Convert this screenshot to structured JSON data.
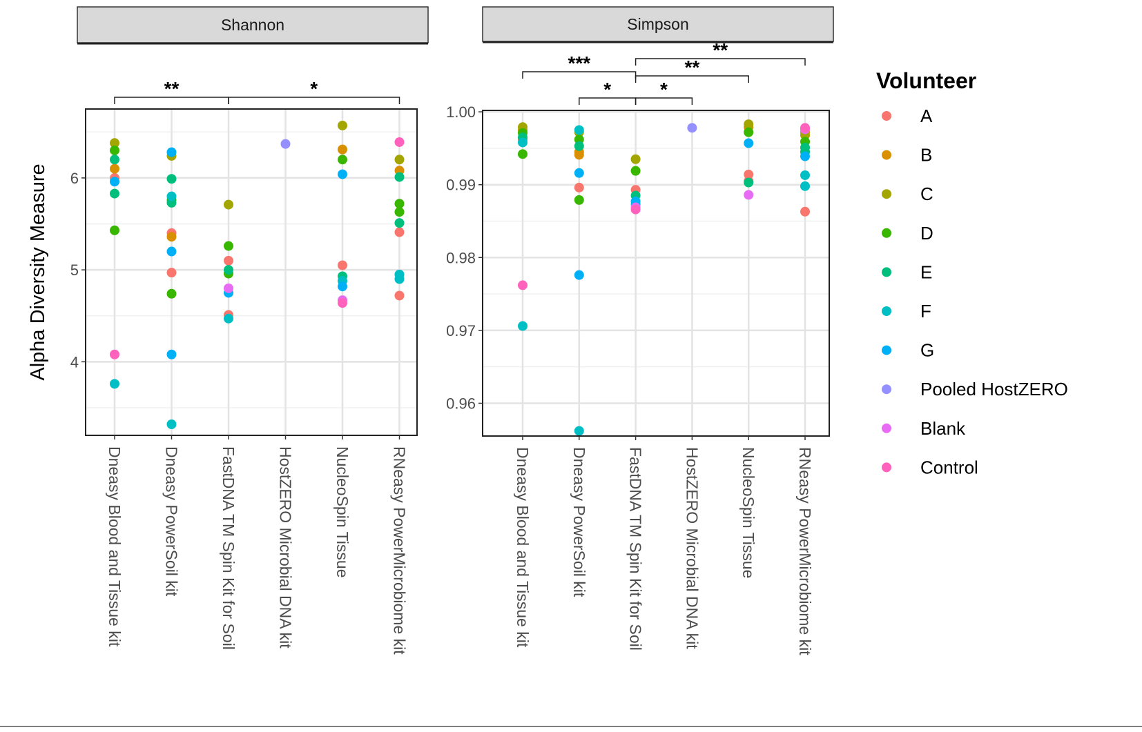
{
  "chart_data": [
    {
      "type": "scatter",
      "title": "Shannon",
      "xlabel": "",
      "ylabel": "Alpha Diversity Measure",
      "ylim": [
        3.2,
        6.75
      ],
      "yticks": [
        4,
        5,
        6
      ],
      "ytick_labels": [
        "4",
        "5",
        "6"
      ],
      "grid": true,
      "categories": [
        "Dneasy Blood and Tissue kit",
        "Dneasy PowerSoil kit",
        "FastDNA TM Spin Kit for Soil",
        "HostZERO Microbial DNA kit",
        "NucleoSpin Tissue",
        "RNeasy PowerMicrobiome kit"
      ],
      "series": [
        {
          "name": "A",
          "points": [
            [
              "Dneasy Blood and Tissue kit",
              6.0
            ],
            [
              "Dneasy PowerSoil kit",
              5.4
            ],
            [
              "Dneasy PowerSoil kit",
              4.97
            ],
            [
              "FastDNA TM Spin Kit for Soil",
              5.1
            ],
            [
              "FastDNA TM Spin Kit for Soil",
              4.51
            ],
            [
              "NucleoSpin Tissue",
              5.05
            ],
            [
              "RNeasy PowerMicrobiome kit",
              5.41
            ],
            [
              "RNeasy PowerMicrobiome kit",
              4.72
            ]
          ]
        },
        {
          "name": "B",
          "points": [
            [
              "Dneasy Blood and Tissue kit",
              6.1
            ],
            [
              "Dneasy PowerSoil kit",
              5.36
            ],
            [
              "NucleoSpin Tissue",
              6.31
            ],
            [
              "RNeasy PowerMicrobiome kit",
              6.08
            ]
          ]
        },
        {
          "name": "C",
          "points": [
            [
              "Dneasy Blood and Tissue kit",
              6.38
            ],
            [
              "Dneasy PowerSoil kit",
              6.24
            ],
            [
              "FastDNA TM Spin Kit for Soil",
              5.71
            ],
            [
              "NucleoSpin Tissue",
              6.57
            ],
            [
              "RNeasy PowerMicrobiome kit",
              6.2
            ]
          ]
        },
        {
          "name": "D",
          "points": [
            [
              "Dneasy Blood and Tissue kit",
              6.3
            ],
            [
              "Dneasy Blood and Tissue kit",
              5.43
            ],
            [
              "Dneasy PowerSoil kit",
              5.76
            ],
            [
              "Dneasy PowerSoil kit",
              4.74
            ],
            [
              "FastDNA TM Spin Kit for Soil",
              5.26
            ],
            [
              "FastDNA TM Spin Kit for Soil",
              4.96
            ],
            [
              "NucleoSpin Tissue",
              6.2
            ],
            [
              "RNeasy PowerMicrobiome kit",
              5.72
            ],
            [
              "RNeasy PowerMicrobiome kit",
              5.63
            ]
          ]
        },
        {
          "name": "E",
          "points": [
            [
              "Dneasy Blood and Tissue kit",
              6.2
            ],
            [
              "Dneasy Blood and Tissue kit",
              5.83
            ],
            [
              "Dneasy PowerSoil kit",
              5.99
            ],
            [
              "Dneasy PowerSoil kit",
              5.73
            ],
            [
              "FastDNA TM Spin Kit for Soil",
              5.0
            ],
            [
              "NucleoSpin Tissue",
              4.93
            ],
            [
              "RNeasy PowerMicrobiome kit",
              6.01
            ],
            [
              "RNeasy PowerMicrobiome kit",
              5.51
            ]
          ]
        },
        {
          "name": "F",
          "points": [
            [
              "Dneasy Blood and Tissue kit",
              3.76
            ],
            [
              "Dneasy PowerSoil kit",
              5.8
            ],
            [
              "Dneasy PowerSoil kit",
              3.32
            ],
            [
              "FastDNA TM Spin Kit for Soil",
              4.47
            ],
            [
              "NucleoSpin Tissue",
              4.88
            ],
            [
              "RNeasy PowerMicrobiome kit",
              4.95
            ],
            [
              "RNeasy PowerMicrobiome kit",
              4.9
            ]
          ]
        },
        {
          "name": "G",
          "points": [
            [
              "Dneasy Blood and Tissue kit",
              5.96
            ],
            [
              "Dneasy PowerSoil kit",
              6.28
            ],
            [
              "Dneasy PowerSoil kit",
              5.2
            ],
            [
              "Dneasy PowerSoil kit",
              4.08
            ],
            [
              "FastDNA TM Spin Kit for Soil",
              4.75
            ],
            [
              "NucleoSpin Tissue",
              6.04
            ],
            [
              "NucleoSpin Tissue",
              4.82
            ]
          ]
        },
        {
          "name": "Pooled HostZERO",
          "points": [
            [
              "HostZERO Microbial DNA kit",
              6.37
            ]
          ]
        },
        {
          "name": "Blank",
          "points": [
            [
              "FastDNA TM Spin Kit for Soil",
              4.8
            ],
            [
              "NucleoSpin Tissue",
              4.67
            ]
          ]
        },
        {
          "name": "Control",
          "points": [
            [
              "Dneasy Blood and Tissue kit",
              4.08
            ],
            [
              "NucleoSpin Tissue",
              4.64
            ],
            [
              "RNeasy PowerMicrobiome kit",
              6.39
            ]
          ]
        }
      ],
      "significance": [
        {
          "from": "Dneasy Blood and Tissue kit",
          "to": "FastDNA TM Spin Kit for Soil",
          "label": "**"
        },
        {
          "from": "FastDNA TM Spin Kit for Soil",
          "to": "RNeasy PowerMicrobiome kit",
          "label": "*"
        }
      ]
    },
    {
      "type": "scatter",
      "title": "Simpson",
      "xlabel": "",
      "ylabel": "",
      "ylim": [
        0.9555,
        1.0002
      ],
      "yticks": [
        0.96,
        0.97,
        0.98,
        0.99,
        1.0
      ],
      "ytick_labels": [
        "0.96",
        "0.97",
        "0.98",
        "0.99",
        "1.00"
      ],
      "grid": true,
      "categories": [
        "Dneasy Blood and Tissue kit",
        "Dneasy PowerSoil kit",
        "FastDNA TM Spin Kit for Soil",
        "HostZERO Microbial DNA kit",
        "NucleoSpin Tissue",
        "RNeasy PowerMicrobiome kit"
      ],
      "series": [
        {
          "name": "A",
          "points": [
            [
              "Dneasy Blood and Tissue kit",
              0.9962
            ],
            [
              "Dneasy PowerSoil kit",
              0.9896
            ],
            [
              "FastDNA TM Spin Kit for Soil",
              0.9893
            ],
            [
              "NucleoSpin Tissue",
              0.9914
            ],
            [
              "NucleoSpin Tissue",
              0.9905
            ],
            [
              "RNeasy PowerMicrobiome kit",
              0.9863
            ]
          ]
        },
        {
          "name": "B",
          "points": [
            [
              "Dneasy Blood and Tissue kit",
              0.9975
            ],
            [
              "Dneasy PowerSoil kit",
              0.9945
            ],
            [
              "Dneasy PowerSoil kit",
              0.9941
            ],
            [
              "NucleoSpin Tissue",
              0.9979
            ],
            [
              "RNeasy PowerMicrobiome kit",
              0.9972
            ]
          ]
        },
        {
          "name": "C",
          "points": [
            [
              "Dneasy Blood and Tissue kit",
              0.9979
            ],
            [
              "Dneasy PowerSoil kit",
              0.9972
            ],
            [
              "FastDNA TM Spin Kit for Soil",
              0.9935
            ],
            [
              "NucleoSpin Tissue",
              0.9983
            ],
            [
              "RNeasy PowerMicrobiome kit",
              0.9968
            ]
          ]
        },
        {
          "name": "D",
          "points": [
            [
              "Dneasy Blood and Tissue kit",
              0.9971
            ],
            [
              "Dneasy Blood and Tissue kit",
              0.9942
            ],
            [
              "Dneasy PowerSoil kit",
              0.9962
            ],
            [
              "Dneasy PowerSoil kit",
              0.9879
            ],
            [
              "FastDNA TM Spin Kit for Soil",
              0.9919
            ],
            [
              "NucleoSpin Tissue",
              0.9972
            ],
            [
              "RNeasy PowerMicrobiome kit",
              0.9959
            ]
          ]
        },
        {
          "name": "E",
          "points": [
            [
              "Dneasy Blood and Tissue kit",
              0.9965
            ],
            [
              "Dneasy PowerSoil kit",
              0.9953
            ],
            [
              "FastDNA TM Spin Kit for Soil",
              0.9885
            ],
            [
              "NucleoSpin Tissue",
              0.9903
            ],
            [
              "RNeasy PowerMicrobiome kit",
              0.9951
            ],
            [
              "RNeasy PowerMicrobiome kit",
              0.9945
            ]
          ]
        },
        {
          "name": "F",
          "points": [
            [
              "Dneasy Blood and Tissue kit",
              0.9958
            ],
            [
              "Dneasy Blood and Tissue kit",
              0.9706
            ],
            [
              "Dneasy PowerSoil kit",
              0.9975
            ],
            [
              "Dneasy PowerSoil kit",
              0.9562
            ],
            [
              "FastDNA TM Spin Kit for Soil",
              0.9873
            ],
            [
              "RNeasy PowerMicrobiome kit",
              0.9913
            ],
            [
              "RNeasy PowerMicrobiome kit",
              0.9898
            ]
          ]
        },
        {
          "name": "G",
          "points": [
            [
              "Dneasy PowerSoil kit",
              0.9916
            ],
            [
              "Dneasy PowerSoil kit",
              0.9776
            ],
            [
              "FastDNA TM Spin Kit for Soil",
              0.9877
            ],
            [
              "NucleoSpin Tissue",
              0.9957
            ],
            [
              "RNeasy PowerMicrobiome kit",
              0.9939
            ]
          ]
        },
        {
          "name": "Pooled HostZERO",
          "points": [
            [
              "HostZERO Microbial DNA kit",
              0.9978
            ]
          ]
        },
        {
          "name": "Blank",
          "points": [
            [
              "FastDNA TM Spin Kit for Soil",
              0.9869
            ],
            [
              "NucleoSpin Tissue",
              0.9886
            ],
            [
              "RNeasy PowerMicrobiome kit",
              0.9976
            ]
          ]
        },
        {
          "name": "Control",
          "points": [
            [
              "Dneasy Blood and Tissue kit",
              0.9762
            ],
            [
              "FastDNA TM Spin Kit for Soil",
              0.9866
            ],
            [
              "RNeasy PowerMicrobiome kit",
              0.9978
            ]
          ]
        }
      ],
      "significance": [
        {
          "from": "Dneasy Blood and Tissue kit",
          "to": "FastDNA TM Spin Kit for Soil",
          "label": "***"
        },
        {
          "from": "Dneasy PowerSoil kit",
          "to": "FastDNA TM Spin Kit for Soil",
          "label": "*"
        },
        {
          "from": "FastDNA TM Spin Kit for Soil",
          "to": "HostZERO Microbial DNA kit",
          "label": "*"
        },
        {
          "from": "FastDNA TM Spin Kit for Soil",
          "to": "NucleoSpin Tissue",
          "label": "**"
        },
        {
          "from": "FastDNA TM Spin Kit for Soil",
          "to": "RNeasy PowerMicrobiome kit",
          "label": "**"
        }
      ]
    }
  ],
  "legend": {
    "title": "Volunteer",
    "entries": [
      {
        "name": "A",
        "color": "#F8766D"
      },
      {
        "name": "B",
        "color": "#D89000"
      },
      {
        "name": "C",
        "color": "#A3A500"
      },
      {
        "name": "D",
        "color": "#39B600"
      },
      {
        "name": "E",
        "color": "#00BF7D"
      },
      {
        "name": "F",
        "color": "#00BFC4"
      },
      {
        "name": "G",
        "color": "#00B0F6"
      },
      {
        "name": "Pooled HostZERO",
        "color": "#9590FF"
      },
      {
        "name": "Blank",
        "color": "#E76BF3"
      },
      {
        "name": "Control",
        "color": "#FF62BC"
      }
    ]
  }
}
